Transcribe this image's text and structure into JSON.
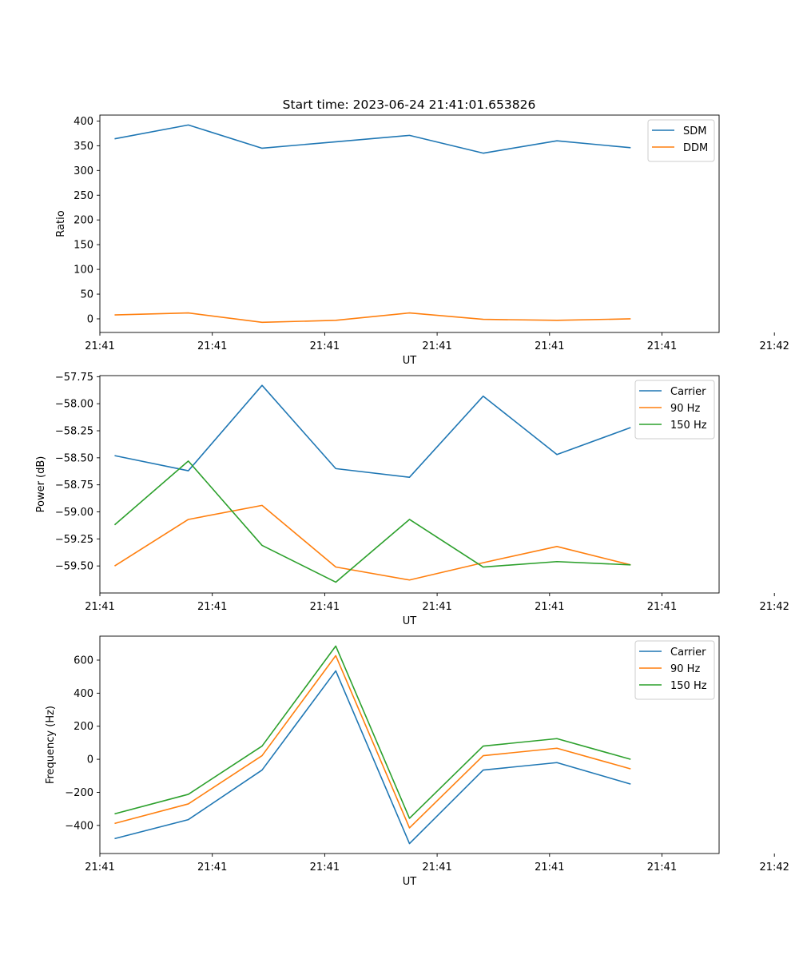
{
  "figure": {
    "title": "Start time: 2023-06-24 21:41:01.653826"
  },
  "chart_data": [
    {
      "type": "line",
      "title": "Start time: 2023-06-24 21:41:01.653826",
      "xlabel": "UT",
      "ylabel": "Ratio",
      "x": [
        1,
        2,
        3,
        4,
        5,
        6,
        7,
        8
      ],
      "xlim": [
        0.8,
        9.2
      ],
      "xticks": [
        0.8,
        2.325,
        3.85,
        5.375,
        6.9,
        8.425,
        9.95
      ],
      "xtick_labels": [
        "21:41",
        "21:41",
        "21:41",
        "21:41",
        "21:41",
        "21:41",
        "21:42"
      ],
      "ylim": [
        -27.5,
        412
      ],
      "yticks": [
        0,
        50,
        100,
        150,
        200,
        250,
        300,
        350,
        400
      ],
      "ytick_labels": [
        "0",
        "50",
        "100",
        "150",
        "200",
        "250",
        "300",
        "350",
        "400"
      ],
      "grid": false,
      "legend": "upper right",
      "series": [
        {
          "name": "SDM",
          "color": "#1f77b4",
          "values": [
            364,
            392,
            345,
            358,
            371,
            335,
            360,
            346
          ]
        },
        {
          "name": "DDM",
          "color": "#ff7f0e",
          "values": [
            8,
            12,
            -7,
            -3,
            12,
            -1,
            -3,
            0
          ]
        }
      ]
    },
    {
      "type": "line",
      "title": "",
      "xlabel": "UT",
      "ylabel": "Power (dB)",
      "x": [
        1,
        2,
        3,
        4,
        5,
        6,
        7,
        8
      ],
      "xlim": [
        0.8,
        9.2
      ],
      "xticks": [
        0.8,
        2.325,
        3.85,
        5.375,
        6.9,
        8.425,
        9.95
      ],
      "xtick_labels": [
        "21:41",
        "21:41",
        "21:41",
        "21:41",
        "21:41",
        "21:41",
        "21:42"
      ],
      "ylim": [
        -59.75,
        -57.74
      ],
      "yticks": [
        -59.5,
        -59.25,
        -59.0,
        -58.75,
        -58.5,
        -58.25,
        -58.0,
        -57.75
      ],
      "ytick_labels": [
        "−59.50",
        "−59.25",
        "−59.00",
        "−58.75",
        "−58.50",
        "−58.25",
        "−58.00",
        "−57.75"
      ],
      "grid": false,
      "legend": "upper right",
      "series": [
        {
          "name": "Carrier",
          "color": "#1f77b4",
          "values": [
            -58.48,
            -58.62,
            -57.83,
            -58.6,
            -58.68,
            -57.93,
            -58.47,
            -58.22
          ]
        },
        {
          "name": "90 Hz",
          "color": "#ff7f0e",
          "values": [
            -59.5,
            -59.07,
            -58.94,
            -59.51,
            -59.63,
            -59.47,
            -59.32,
            -59.49
          ]
        },
        {
          "name": "150 Hz",
          "color": "#2ca02c",
          "values": [
            -59.12,
            -58.53,
            -59.31,
            -59.65,
            -59.07,
            -59.51,
            -59.46,
            -59.49
          ]
        }
      ]
    },
    {
      "type": "line",
      "title": "",
      "xlabel": "UT",
      "ylabel": "Frequency (Hz)",
      "x": [
        1,
        2,
        3,
        4,
        5,
        6,
        7,
        8
      ],
      "xlim": [
        0.8,
        9.2
      ],
      "xticks": [
        0.8,
        2.325,
        3.85,
        5.375,
        6.9,
        8.425,
        9.95
      ],
      "xtick_labels": [
        "21:41",
        "21:41",
        "21:41",
        "21:41",
        "21:41",
        "21:41",
        "21:42"
      ],
      "ylim": [
        -570,
        745
      ],
      "yticks": [
        -400,
        -200,
        0,
        200,
        400,
        600
      ],
      "ytick_labels": [
        "−400",
        "−200",
        "0",
        "200",
        "400",
        "600"
      ],
      "grid": false,
      "legend": "upper right",
      "series": [
        {
          "name": "Carrier",
          "color": "#1f77b4",
          "values": [
            -480,
            -365,
            -65,
            535,
            -510,
            -65,
            -20,
            -150
          ]
        },
        {
          "name": "90 Hz",
          "color": "#ff7f0e",
          "values": [
            -388,
            -270,
            22,
            627,
            -415,
            22,
            67,
            -58
          ]
        },
        {
          "name": "150 Hz",
          "color": "#2ca02c",
          "values": [
            -330,
            -212,
            80,
            685,
            -357,
            80,
            125,
            0
          ]
        }
      ]
    }
  ]
}
